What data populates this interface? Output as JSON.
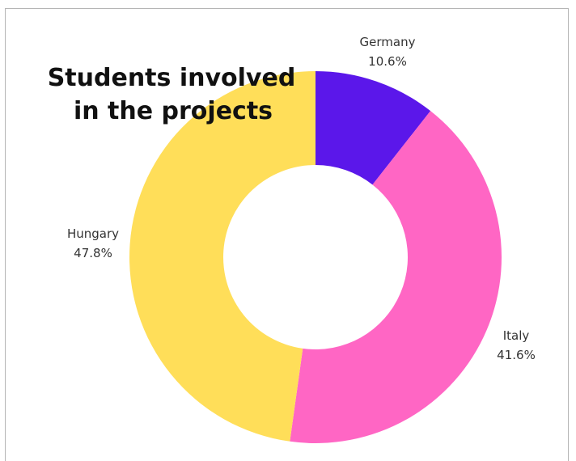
{
  "chart_data": {
    "type": "pie",
    "variant": "donut",
    "title_lines": [
      "Students involved",
      "in the projects"
    ],
    "slices": [
      {
        "label": "Germany",
        "value": 10.6,
        "value_label": "10.6%",
        "color": "#5B17EA"
      },
      {
        "label": "Italy",
        "value": 41.6,
        "value_label": "41.6%",
        "color": "#FF66C4"
      },
      {
        "label": "Hungary",
        "value": 47.8,
        "value_label": "47.8%",
        "color": "#FFDE59"
      }
    ],
    "start": "top",
    "direction": "clockwise",
    "legend": "none"
  }
}
